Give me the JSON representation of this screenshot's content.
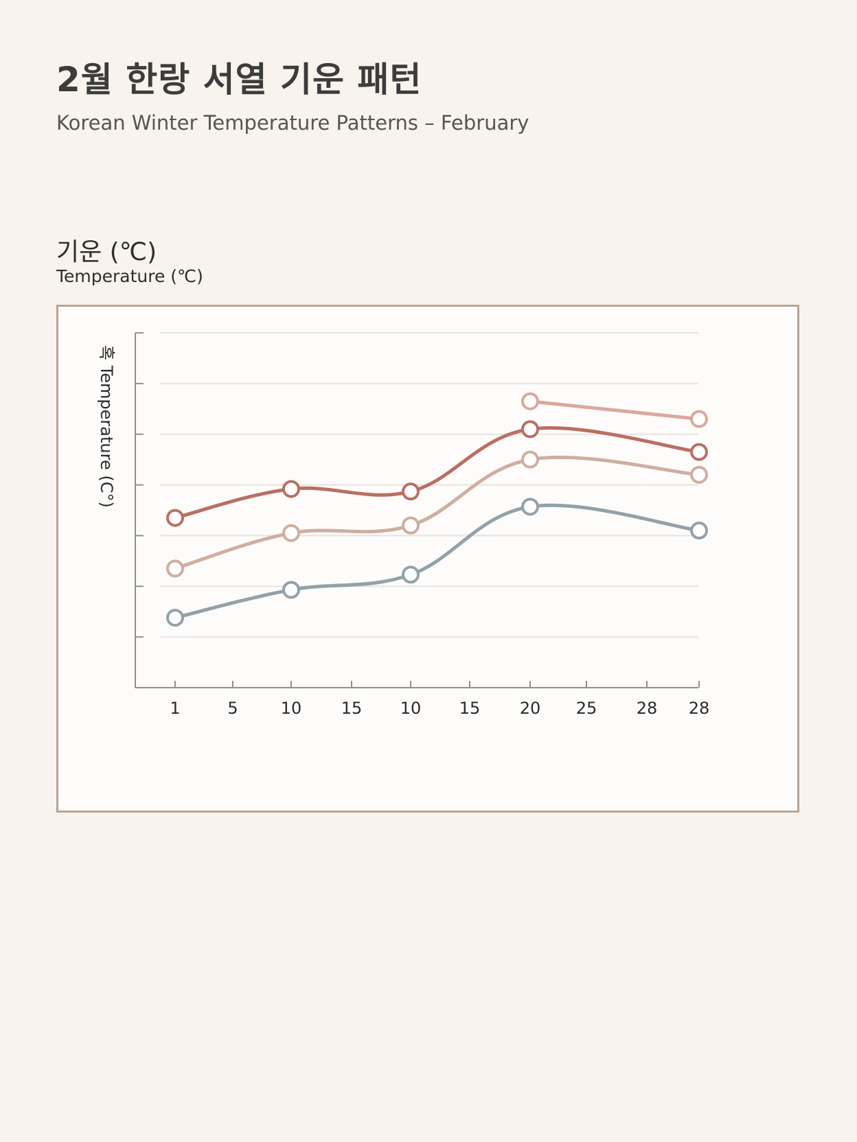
{
  "header": {
    "title": "2월 한랑 서열 기운 패턴",
    "subtitle": "Korean Winter Temperature Patterns – February"
  },
  "unit": {
    "korean": "기운 (℃)",
    "english": "Temperature (℃)"
  },
  "chart_data": {
    "type": "line",
    "title": "2월 한랑 서열 기운 패턴",
    "subtitle": "Korean Winter Temperature Patterns – February",
    "ylabel": "혹 Temperature (C°)",
    "xlabel": "",
    "categories": [
      "1",
      "5",
      "10",
      "15",
      "10",
      "15",
      "20",
      "25",
      "28",
      "28"
    ],
    "ylim": [
      0,
      7
    ],
    "grid": true,
    "legend": "none",
    "series": [
      {
        "color": "#dba89b",
        "values": [
          null,
          null,
          null,
          null,
          null,
          null,
          5.65,
          null,
          null,
          5.3
        ]
      },
      {
        "color": "#ba6f63",
        "values": [
          3.35,
          null,
          3.92,
          null,
          3.87,
          null,
          5.1,
          null,
          null,
          4.65
        ]
      },
      {
        "color": "#cfaea0",
        "values": [
          2.35,
          null,
          3.05,
          null,
          3.2,
          null,
          4.5,
          null,
          null,
          4.2
        ]
      },
      {
        "color": "#93a1a9",
        "values": [
          1.38,
          null,
          1.93,
          null,
          2.23,
          null,
          3.57,
          null,
          null,
          3.1
        ]
      }
    ]
  }
}
